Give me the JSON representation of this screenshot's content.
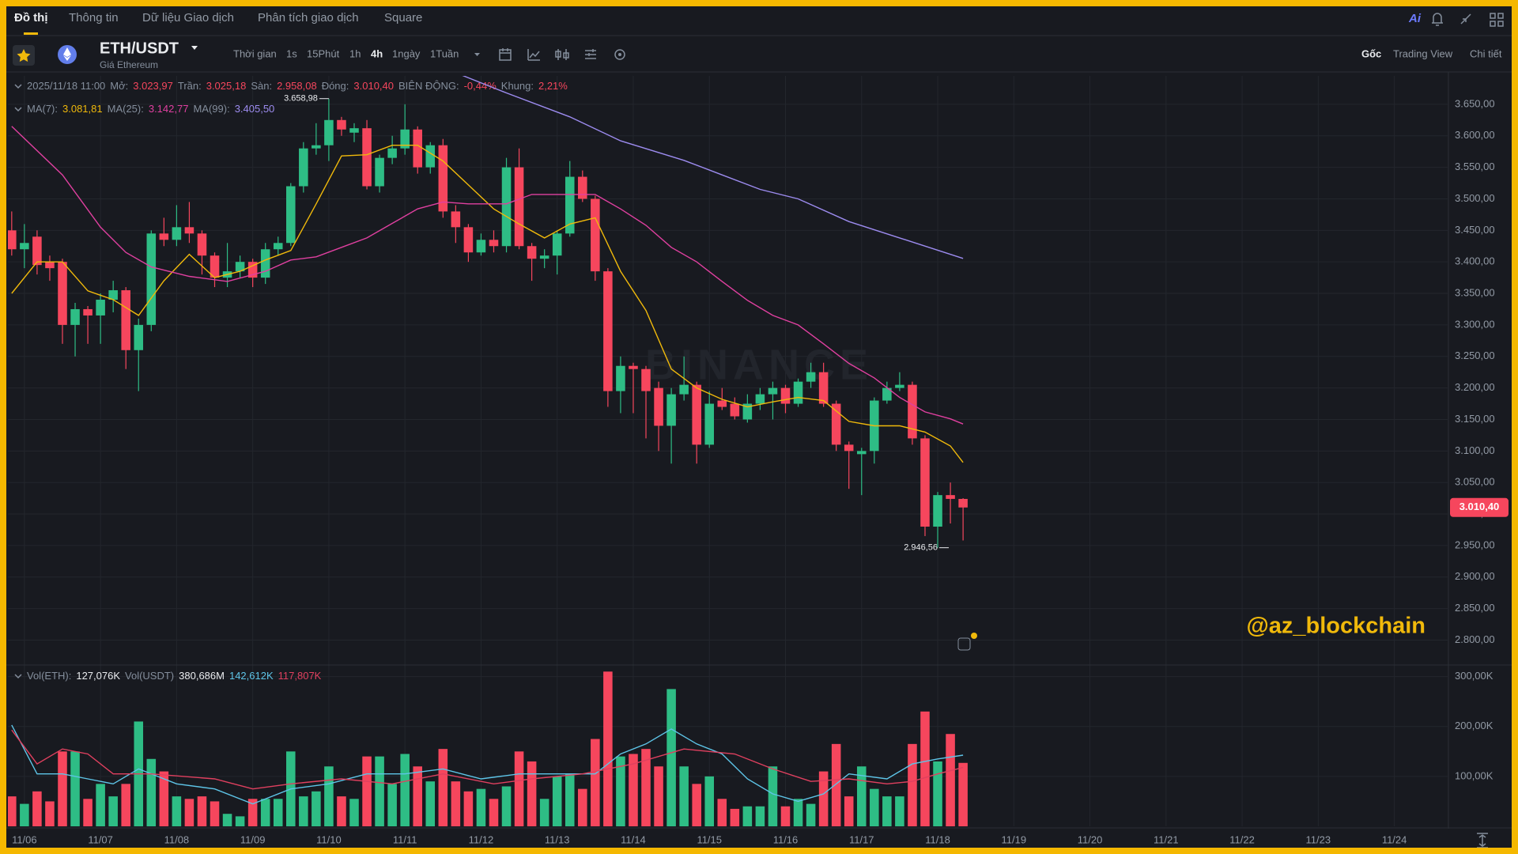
{
  "nav": {
    "tabs": [
      {
        "text": "Đồ thị",
        "active": true
      },
      {
        "text": "Thông tin",
        "active": false
      },
      {
        "text": "Dữ liệu Giao dịch",
        "active": false
      },
      {
        "text": "Phân tích giao dịch",
        "active": false
      },
      {
        "text": "Square",
        "active": false
      }
    ],
    "ai": "Ai"
  },
  "toolbar": {
    "symbol": "ETH/USDT",
    "subtitle": "Giá Ethereum",
    "intervals": [
      {
        "text": "Thời gian",
        "active": false
      },
      {
        "text": "1s",
        "active": false
      },
      {
        "text": "15Phút",
        "active": false
      },
      {
        "text": "1h",
        "active": false
      },
      {
        "text": "4h",
        "active": true
      },
      {
        "text": "1ngày",
        "active": false
      },
      {
        "text": "1Tuần",
        "active": false
      }
    ],
    "views": [
      {
        "text": "Gốc",
        "active": true
      },
      {
        "text": "Trading View",
        "active": false
      },
      {
        "text": "Chi tiết",
        "active": false
      }
    ]
  },
  "info": {
    "ohlc": [
      {
        "text": "2025/11/18 11:00",
        "color": "#848e9c"
      },
      {
        "text": "Mở:",
        "color": "#848e9c"
      },
      {
        "text": "3.023,97",
        "color": "#f6465d"
      },
      {
        "text": "Trần:",
        "color": "#848e9c"
      },
      {
        "text": "3.025,18",
        "color": "#f6465d"
      },
      {
        "text": "Sàn:",
        "color": "#848e9c"
      },
      {
        "text": "2.958,08",
        "color": "#f6465d"
      },
      {
        "text": "Đóng:",
        "color": "#848e9c"
      },
      {
        "text": "3.010,40",
        "color": "#f6465d"
      },
      {
        "text": "BIÊN ĐỘNG:",
        "color": "#848e9c"
      },
      {
        "text": "-0,44%",
        "color": "#f6465d"
      },
      {
        "text": "Khung:",
        "color": "#848e9c"
      },
      {
        "text": "2,21%",
        "color": "#f6465d"
      }
    ],
    "ma": [
      {
        "text": "MA(7):",
        "color": "#848e9c"
      },
      {
        "text": "3.081,81",
        "color": "#f0b90b"
      },
      {
        "text": "MA(25):",
        "color": "#848e9c"
      },
      {
        "text": "3.142,77",
        "color": "#e040a0"
      },
      {
        "text": "MA(99):",
        "color": "#848e9c"
      },
      {
        "text": "3.405,50",
        "color": "#9d8cf0"
      }
    ],
    "vol": [
      {
        "text": "Vol(ETH):",
        "color": "#848e9c"
      },
      {
        "text": "127,076K",
        "color": "#eaecef"
      },
      {
        "text": "Vol(USDT)",
        "color": "#848e9c"
      },
      {
        "text": "380,686M",
        "color": "#eaecef"
      },
      {
        "text": "142,612K",
        "color": "#5ec5e8"
      },
      {
        "text": "117,807K",
        "color": "#e0405f"
      }
    ]
  },
  "watermark": "BINANCE",
  "credit": "@az_blockchain",
  "chart_data": [
    {
      "type": "candlestick",
      "up_color": "#2ebd85",
      "down_color": "#f6465d",
      "grid": true,
      "open": [
        3450,
        3420,
        3440,
        3400,
        3400,
        3300,
        3325,
        3315,
        3340,
        3355,
        3260,
        3300,
        3445,
        3435,
        3455,
        3445,
        3410,
        3375,
        3385,
        3400,
        3375,
        3420,
        3430,
        3520,
        3580,
        3585,
        3625,
        3605,
        3612,
        3520,
        3565,
        3580,
        3610,
        3550,
        3585,
        3480,
        3455,
        3415,
        3435,
        3425,
        3550,
        3425,
        3405,
        3410,
        3445,
        3535,
        3500,
        3385,
        3195,
        3235,
        3230,
        3200,
        3140,
        3190,
        3205,
        3110,
        3180,
        3175,
        3150,
        3175,
        3190,
        3200,
        3175,
        3210,
        3225,
        3175,
        3110,
        3095,
        3100,
        3180,
        3200,
        3205,
        3120,
        2980,
        3030,
        3023.97
      ],
      "high": [
        3480,
        3460,
        3450,
        3410,
        3405,
        3335,
        3330,
        3350,
        3370,
        3360,
        3310,
        3450,
        3470,
        3490,
        3495,
        3450,
        3415,
        3430,
        3410,
        3405,
        3430,
        3440,
        3525,
        3590,
        3620,
        3658.98,
        3630,
        3620,
        3625,
        3570,
        3600,
        3650,
        3615,
        3590,
        3595,
        3490,
        3460,
        3445,
        3450,
        3565,
        3580,
        3430,
        3420,
        3450,
        3560,
        3545,
        3505,
        3390,
        3250,
        3240,
        3235,
        3210,
        3200,
        3250,
        3210,
        3195,
        3200,
        3185,
        3190,
        3200,
        3210,
        3205,
        3215,
        3240,
        3240,
        3180,
        3115,
        3105,
        3185,
        3210,
        3225,
        3210,
        3125,
        3035,
        3050,
        3025.18
      ],
      "low": [
        3410,
        3390,
        3380,
        3370,
        3270,
        3250,
        3270,
        3270,
        3320,
        3230,
        3195,
        3290,
        3425,
        3425,
        3430,
        3380,
        3360,
        3360,
        3375,
        3360,
        3365,
        3410,
        3425,
        3510,
        3570,
        3560,
        3600,
        3590,
        3515,
        3510,
        3555,
        3570,
        3540,
        3540,
        3470,
        3430,
        3400,
        3410,
        3415,
        3415,
        3420,
        3370,
        3390,
        3380,
        3440,
        3495,
        3370,
        3170,
        3160,
        3160,
        3120,
        3100,
        3080,
        3180,
        3080,
        3105,
        3165,
        3150,
        3145,
        3165,
        3150,
        3160,
        3170,
        3200,
        3170,
        3100,
        3040,
        3030,
        3080,
        3175,
        3195,
        3110,
        2965,
        2946.56,
        2985,
        2958.08
      ],
      "close": [
        3420,
        3430,
        3395,
        3390,
        3300,
        3325,
        3315,
        3340,
        3355,
        3260,
        3300,
        3445,
        3435,
        3455,
        3445,
        3410,
        3375,
        3385,
        3400,
        3375,
        3420,
        3430,
        3520,
        3580,
        3585,
        3625,
        3610,
        3612,
        3520,
        3565,
        3580,
        3610,
        3550,
        3585,
        3480,
        3455,
        3415,
        3435,
        3425,
        3550,
        3425,
        3405,
        3410,
        3445,
        3535,
        3500,
        3385,
        3195,
        3235,
        3230,
        3195,
        3140,
        3190,
        3205,
        3110,
        3175,
        3170,
        3155,
        3175,
        3190,
        3200,
        3175,
        3210,
        3225,
        3175,
        3110,
        3100,
        3100,
        3180,
        3200,
        3205,
        3120,
        2980,
        3030,
        3024,
        3010.4
      ],
      "lines": [
        {
          "color": "#f0b90b",
          "x": [
            0,
            2,
            4,
            6,
            8,
            10,
            12,
            14,
            16,
            18,
            20,
            22,
            24,
            26,
            28,
            30,
            32,
            34,
            36,
            38,
            40,
            42,
            44,
            46,
            48,
            50,
            52,
            54,
            56,
            58,
            60,
            62,
            64,
            66,
            68,
            70,
            72,
            74,
            75
          ],
          "values": [
            3350,
            3400,
            3400,
            3354,
            3340,
            3315,
            3370,
            3412,
            3375,
            3385,
            3403,
            3418,
            3492,
            3568,
            3570,
            3585,
            3585,
            3560,
            3522,
            3484,
            3460,
            3438,
            3460,
            3470,
            3385,
            3323,
            3230,
            3200,
            3182,
            3170,
            3178,
            3185,
            3180,
            3147,
            3140,
            3140,
            3130,
            3108,
            3081.81
          ]
        },
        {
          "color": "#e040a0",
          "x": [
            0,
            4,
            7,
            9,
            11,
            14,
            17,
            20,
            22,
            24,
            26,
            28,
            30,
            32,
            34,
            36,
            39,
            41,
            44,
            46,
            48,
            50,
            52,
            54,
            56,
            58,
            60,
            62,
            64,
            66,
            68,
            70,
            72,
            74,
            75
          ],
          "values": [
            3615,
            3538,
            3455,
            3415,
            3392,
            3377,
            3369,
            3385,
            3403,
            3408,
            3423,
            3438,
            3461,
            3484,
            3495,
            3492,
            3492,
            3507,
            3507,
            3507,
            3484,
            3458,
            3423,
            3400,
            3369,
            3339,
            3315,
            3300,
            3270,
            3239,
            3216,
            3185,
            3162,
            3151,
            3142.77
          ]
        },
        {
          "color": "#9d8cf0",
          "x": [
            35,
            39,
            44,
            48,
            53,
            56,
            59,
            62,
            66,
            70,
            75
          ],
          "values": [
            3700,
            3668,
            3630,
            3592,
            3561,
            3538,
            3515,
            3500,
            3464,
            3438,
            3405.5
          ]
        }
      ],
      "ylim": [
        2763,
        3695
      ],
      "yticks": [
        {
          "value": 2800,
          "label": "2.800,00"
        },
        {
          "value": 2850,
          "label": "2.850,00"
        },
        {
          "value": 2900,
          "label": "2.900,00"
        },
        {
          "value": 2950,
          "label": "2.950,00"
        },
        {
          "value": 3000,
          "label": "3.000,00"
        },
        {
          "value": 3050,
          "label": "3.050,00"
        },
        {
          "value": 3100,
          "label": "3.100,00"
        },
        {
          "value": 3150,
          "label": "3.150,00"
        },
        {
          "value": 3200,
          "label": "3.200,00"
        },
        {
          "value": 3250,
          "label": "3.250,00"
        },
        {
          "value": 3300,
          "label": "3.300,00"
        },
        {
          "value": 3350,
          "label": "3.350,00"
        },
        {
          "value": 3400,
          "label": "3.400,00"
        },
        {
          "value": 3450,
          "label": "3.450,00"
        },
        {
          "value": 3500,
          "label": "3.500,00"
        },
        {
          "value": 3550,
          "label": "3.550,00"
        },
        {
          "value": 3600,
          "label": "3.600,00"
        },
        {
          "value": 3650,
          "label": "3.650,00"
        }
      ],
      "xlim": [
        -0.3,
        113.2
      ],
      "xticks": [
        {
          "value": 1,
          "label": "11/06"
        },
        {
          "value": 7,
          "label": "11/07"
        },
        {
          "value": 13,
          "label": "11/08"
        },
        {
          "value": 19,
          "label": "11/09"
        },
        {
          "value": 25,
          "label": "11/10"
        },
        {
          "value": 31,
          "label": "11/11"
        },
        {
          "value": 37,
          "label": "11/12"
        },
        {
          "value": 43,
          "label": "11/13"
        },
        {
          "value": 49,
          "label": "11/14"
        },
        {
          "value": 55,
          "label": "11/15"
        },
        {
          "value": 61,
          "label": "11/16"
        },
        {
          "value": 67,
          "label": "11/17"
        },
        {
          "value": 73,
          "label": "11/18"
        },
        {
          "value": 79,
          "label": "11/19"
        },
        {
          "value": 85,
          "label": "11/20"
        },
        {
          "value": 91,
          "label": "11/21"
        },
        {
          "value": 97,
          "label": "11/22"
        },
        {
          "value": 103,
          "label": "11/23"
        },
        {
          "value": 109,
          "label": "11/24"
        }
      ],
      "high_label": "3.658,98",
      "low_label": "2.946,56",
      "last_price_label": "3.010,40",
      "last_price_color": "#f6465d"
    },
    {
      "type": "bar",
      "values": [
        60000,
        45000,
        70000,
        50000,
        150000,
        150000,
        55000,
        85000,
        60000,
        85000,
        210000,
        135000,
        110000,
        60000,
        55000,
        60000,
        50000,
        25000,
        20000,
        55000,
        55000,
        55000,
        150000,
        60000,
        70000,
        120000,
        60000,
        55000,
        140000,
        140000,
        85000,
        145000,
        120000,
        90000,
        155000,
        90000,
        70000,
        75000,
        55000,
        80000,
        150000,
        130000,
        55000,
        100000,
        105000,
        75000,
        175000,
        310000,
        140000,
        145000,
        155000,
        120000,
        275000,
        120000,
        85000,
        100000,
        55000,
        35000,
        40000,
        40000,
        120000,
        40000,
        55000,
        45000,
        110000,
        165000,
        60000,
        120000,
        75000,
        60000,
        60000,
        165000,
        230000,
        130000,
        185000,
        127076
      ],
      "lines": [
        {
          "color": "#5ec5e8",
          "x": [
            0,
            2,
            4,
            6,
            8,
            10,
            13,
            16,
            19,
            22,
            25,
            28,
            31,
            34,
            37,
            40,
            43,
            46,
            48,
            50,
            52,
            54,
            56,
            58,
            60,
            62,
            64,
            66,
            69,
            71,
            73,
            75
          ],
          "values": [
            203000,
            105000,
            105000,
            95000,
            85000,
            115000,
            85000,
            75000,
            45000,
            75000,
            85000,
            105000,
            105000,
            115000,
            95000,
            105000,
            105000,
            105000,
            145000,
            165000,
            195000,
            165000,
            145000,
            95000,
            65000,
            50000,
            65000,
            105000,
            95000,
            125000,
            135000,
            142612
          ]
        },
        {
          "color": "#e0405f",
          "x": [
            0,
            2,
            4,
            6,
            8,
            11,
            16,
            19,
            22,
            26,
            30,
            34,
            38,
            41,
            45,
            49,
            53,
            57,
            60,
            63,
            66,
            69,
            71,
            73,
            75
          ],
          "values": [
            193000,
            125000,
            155000,
            145000,
            105000,
            105000,
            95000,
            75000,
            85000,
            95000,
            85000,
            105000,
            85000,
            95000,
            105000,
            125000,
            155000,
            145000,
            115000,
            90000,
            95000,
            85000,
            90000,
            105000,
            117807
          ]
        }
      ],
      "ylim": [
        0,
        320000
      ],
      "yticks": [
        {
          "value": 100000,
          "label": "100,00K"
        },
        {
          "value": 200000,
          "label": "200,00K"
        },
        {
          "value": 300000,
          "label": "300,00K"
        }
      ]
    }
  ]
}
